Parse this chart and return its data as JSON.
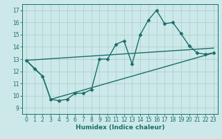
{
  "background_color": "#cce8e8",
  "grid_color": "#aacccc",
  "line_color": "#1a6e6a",
  "marker_style": "D",
  "marker_size": 2.5,
  "line_width": 1.0,
  "xlabel": "Humidex (Indice chaleur)",
  "xlabel_fontsize": 6.5,
  "xlim": [
    -0.5,
    23.5
  ],
  "ylim": [
    8.5,
    17.5
  ],
  "xticks": [
    0,
    1,
    2,
    3,
    4,
    5,
    6,
    7,
    8,
    9,
    10,
    11,
    12,
    13,
    14,
    15,
    16,
    17,
    18,
    19,
    20,
    21,
    22,
    23
  ],
  "yticks": [
    9,
    10,
    11,
    12,
    13,
    14,
    15,
    16,
    17
  ],
  "tick_fontsize": 5.5,
  "series_main": {
    "x": [
      0,
      1,
      2,
      3,
      4,
      5,
      6,
      7,
      8,
      9,
      10,
      11,
      12,
      13,
      14,
      15,
      16,
      17,
      18,
      19,
      20,
      21,
      22,
      23
    ],
    "y": [
      12.9,
      12.2,
      11.6,
      9.7,
      9.6,
      9.7,
      10.2,
      10.2,
      10.5,
      13.0,
      13.0,
      14.2,
      14.5,
      12.6,
      15.0,
      16.2,
      17.0,
      15.9,
      16.0,
      15.1,
      14.1,
      13.5,
      13.4,
      13.5
    ]
  },
  "series_lower": {
    "x": [
      0,
      2,
      3,
      23
    ],
    "y": [
      12.9,
      11.6,
      9.7,
      13.5
    ]
  },
  "series_upper": {
    "x": [
      0,
      23
    ],
    "y": [
      12.9,
      13.9
    ]
  }
}
